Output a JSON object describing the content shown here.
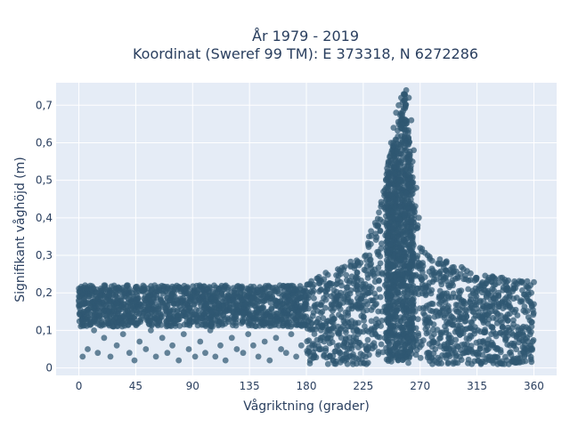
{
  "chart_data": {
    "type": "scatter",
    "title_line1": "År 1979 - 2019",
    "title_line2": "Koordinat (Sweref 99 TM): E 373318, N 6272286",
    "xlabel": "Vågriktning (grader)",
    "ylabel": "Signifikant våghöjd (m)",
    "xlim": [
      -18,
      378
    ],
    "ylim": [
      -0.02,
      0.76
    ],
    "x_ticks": [
      0,
      45,
      90,
      135,
      180,
      225,
      270,
      315,
      360
    ],
    "x_tick_labels": [
      "0",
      "45",
      "90",
      "135",
      "180",
      "225",
      "270",
      "315",
      "360"
    ],
    "y_ticks": [
      0,
      0.1,
      0.2,
      0.3,
      0.4,
      0.5,
      0.6,
      0.7
    ],
    "y_tick_labels": [
      "0",
      "0,1",
      "0,2",
      "0,3",
      "0,4",
      "0,5",
      "0,6",
      "0,7"
    ],
    "grid": true,
    "legend": "none",
    "colors": {
      "marker": "#2f5871",
      "plot_bg": "#e5ecf6",
      "grid": "#ffffff",
      "text": "#2a3f5f"
    },
    "series": [
      {
        "envelope_description_points": [
          {
            "x": 0,
            "y_max": 0.23
          },
          {
            "x": 45,
            "y_max": 0.23
          },
          {
            "x": 90,
            "y_max": 0.21
          },
          {
            "x": 135,
            "y_max": 0.21
          },
          {
            "x": 180,
            "y_max": 0.23
          },
          {
            "x": 225,
            "y_max": 0.3
          },
          {
            "x": 240,
            "y_max": 0.48
          },
          {
            "x": 250,
            "y_max": 0.62
          },
          {
            "x": 258,
            "y_max": 0.74
          },
          {
            "x": 270,
            "y_max": 0.32
          },
          {
            "x": 315,
            "y_max": 0.25
          },
          {
            "x": 360,
            "y_max": 0.23
          }
        ],
        "values": [
          [
            0,
            0.18
          ],
          [
            2,
            0.17
          ],
          [
            3,
            0.2
          ],
          [
            4,
            0.15
          ],
          [
            5,
            0.22
          ],
          [
            6,
            0.13
          ],
          [
            8,
            0.19
          ],
          [
            9,
            0.16
          ],
          [
            10,
            0.21
          ],
          [
            12,
            0.14
          ],
          [
            14,
            0.2
          ],
          [
            16,
            0.17
          ],
          [
            18,
            0.12
          ],
          [
            20,
            0.22
          ],
          [
            22,
            0.18
          ],
          [
            24,
            0.15
          ],
          [
            26,
            0.2
          ],
          [
            28,
            0.16
          ],
          [
            30,
            0.21
          ],
          [
            32,
            0.13
          ],
          [
            34,
            0.19
          ],
          [
            36,
            0.17
          ],
          [
            38,
            0.22
          ],
          [
            40,
            0.14
          ],
          [
            42,
            0.2
          ],
          [
            45,
            0.18
          ],
          [
            47,
            0.16
          ],
          [
            50,
            0.21
          ],
          [
            52,
            0.15
          ],
          [
            55,
            0.19
          ],
          [
            58,
            0.17
          ],
          [
            60,
            0.22
          ],
          [
            62,
            0.13
          ],
          [
            65,
            0.18
          ],
          [
            68,
            0.16
          ],
          [
            70,
            0.2
          ],
          [
            72,
            0.14
          ],
          [
            75,
            0.19
          ],
          [
            78,
            0.17
          ],
          [
            80,
            0.21
          ],
          [
            83,
            0.15
          ],
          [
            85,
            0.18
          ],
          [
            88,
            0.16
          ],
          [
            90,
            0.2
          ],
          [
            93,
            0.14
          ],
          [
            96,
            0.18
          ],
          [
            99,
            0.16
          ],
          [
            102,
            0.19
          ],
          [
            105,
            0.15
          ],
          [
            108,
            0.2
          ],
          [
            111,
            0.17
          ],
          [
            114,
            0.14
          ],
          [
            117,
            0.19
          ],
          [
            120,
            0.16
          ],
          [
            123,
            0.2
          ],
          [
            126,
            0.15
          ],
          [
            129,
            0.18
          ],
          [
            132,
            0.17
          ],
          [
            135,
            0.2
          ],
          [
            138,
            0.14
          ],
          [
            141,
            0.18
          ],
          [
            144,
            0.16
          ],
          [
            147,
            0.21
          ],
          [
            150,
            0.15
          ],
          [
            153,
            0.19
          ],
          [
            156,
            0.17
          ],
          [
            159,
            0.22
          ],
          [
            162,
            0.14
          ],
          [
            165,
            0.2
          ],
          [
            168,
            0.16
          ],
          [
            171,
            0.21
          ],
          [
            174,
            0.15
          ],
          [
            177,
            0.2
          ],
          [
            180,
            0.18
          ],
          [
            3,
            0.03
          ],
          [
            7,
            0.05
          ],
          [
            12,
            0.1
          ],
          [
            15,
            0.04
          ],
          [
            20,
            0.08
          ],
          [
            25,
            0.03
          ],
          [
            30,
            0.06
          ],
          [
            35,
            0.09
          ],
          [
            40,
            0.04
          ],
          [
            44,
            0.02
          ],
          [
            48,
            0.07
          ],
          [
            53,
            0.05
          ],
          [
            57,
            0.1
          ],
          [
            61,
            0.03
          ],
          [
            66,
            0.08
          ],
          [
            70,
            0.04
          ],
          [
            74,
            0.06
          ],
          [
            79,
            0.02
          ],
          [
            83,
            0.09
          ],
          [
            87,
            0.05
          ],
          [
            92,
            0.03
          ],
          [
            96,
            0.07
          ],
          [
            100,
            0.04
          ],
          [
            104,
            0.1
          ],
          [
            108,
            0.03
          ],
          [
            112,
            0.06
          ],
          [
            116,
            0.02
          ],
          [
            121,
            0.08
          ],
          [
            125,
            0.05
          ],
          [
            130,
            0.04
          ],
          [
            134,
            0.09
          ],
          [
            138,
            0.06
          ],
          [
            142,
            0.03
          ],
          [
            147,
            0.07
          ],
          [
            151,
            0.02
          ],
          [
            156,
            0.08
          ],
          [
            160,
            0.05
          ],
          [
            164,
            0.04
          ],
          [
            168,
            0.09
          ],
          [
            172,
            0.03
          ],
          [
            176,
            0.06
          ],
          [
            185,
            0.2
          ],
          [
            188,
            0.12
          ],
          [
            190,
            0.05
          ],
          [
            192,
            0.23
          ],
          [
            195,
            0.16
          ],
          [
            197,
            0.08
          ],
          [
            199,
            0.22
          ],
          [
            201,
            0.02
          ],
          [
            203,
            0.18
          ],
          [
            205,
            0.11
          ],
          [
            207,
            0.25
          ],
          [
            209,
            0.06
          ],
          [
            211,
            0.2
          ],
          [
            213,
            0.14
          ],
          [
            215,
            0.27
          ],
          [
            217,
            0.03
          ],
          [
            219,
            0.21
          ],
          [
            221,
            0.09
          ],
          [
            223,
            0.28
          ],
          [
            225,
            0.15
          ],
          [
            227,
            0.3
          ],
          [
            229,
            0.05
          ],
          [
            231,
            0.33
          ],
          [
            233,
            0.18
          ],
          [
            235,
            0.38
          ],
          [
            237,
            0.12
          ],
          [
            239,
            0.43
          ],
          [
            240,
            0.25
          ],
          [
            241,
            0.47
          ],
          [
            242,
            0.08
          ],
          [
            243,
            0.5
          ],
          [
            244,
            0.3
          ],
          [
            245,
            0.55
          ],
          [
            246,
            0.2
          ],
          [
            247,
            0.6
          ],
          [
            248,
            0.4
          ],
          [
            249,
            0.64
          ],
          [
            250,
            0.1
          ],
          [
            251,
            0.68
          ],
          [
            252,
            0.35
          ],
          [
            253,
            0.7
          ],
          [
            254,
            0.5
          ],
          [
            255,
            0.72
          ],
          [
            256,
            0.25
          ],
          [
            257,
            0.73
          ],
          [
            258,
            0.6
          ],
          [
            259,
            0.74
          ],
          [
            260,
            0.45
          ],
          [
            261,
            0.72
          ],
          [
            262,
            0.3
          ],
          [
            263,
            0.66
          ],
          [
            264,
            0.55
          ],
          [
            265,
            0.58
          ],
          [
            266,
            0.15
          ],
          [
            267,
            0.48
          ],
          [
            268,
            0.38
          ],
          [
            269,
            0.4
          ],
          [
            270,
            0.32
          ],
          [
            272,
            0.28
          ],
          [
            274,
            0.22
          ],
          [
            276,
            0.3
          ],
          [
            278,
            0.12
          ],
          [
            280,
            0.26
          ],
          [
            282,
            0.05
          ],
          [
            285,
            0.25
          ],
          [
            288,
            0.18
          ],
          [
            290,
            0.24
          ],
          [
            293,
            0.08
          ],
          [
            296,
            0.22
          ],
          [
            299,
            0.15
          ],
          [
            302,
            0.25
          ],
          [
            305,
            0.04
          ],
          [
            308,
            0.21
          ],
          [
            311,
            0.12
          ],
          [
            314,
            0.24
          ],
          [
            317,
            0.07
          ],
          [
            320,
            0.22
          ],
          [
            323,
            0.16
          ],
          [
            326,
            0.23
          ],
          [
            329,
            0.03
          ],
          [
            332,
            0.2
          ],
          [
            335,
            0.11
          ],
          [
            338,
            0.22
          ],
          [
            341,
            0.06
          ],
          [
            344,
            0.21
          ],
          [
            347,
            0.14
          ],
          [
            350,
            0.23
          ],
          [
            352,
            0.04
          ],
          [
            354,
            0.19
          ],
          [
            356,
            0.1
          ],
          [
            358,
            0.2
          ],
          [
            359,
            0.07
          ],
          [
            360,
            0.17
          ]
        ]
      }
    ]
  }
}
